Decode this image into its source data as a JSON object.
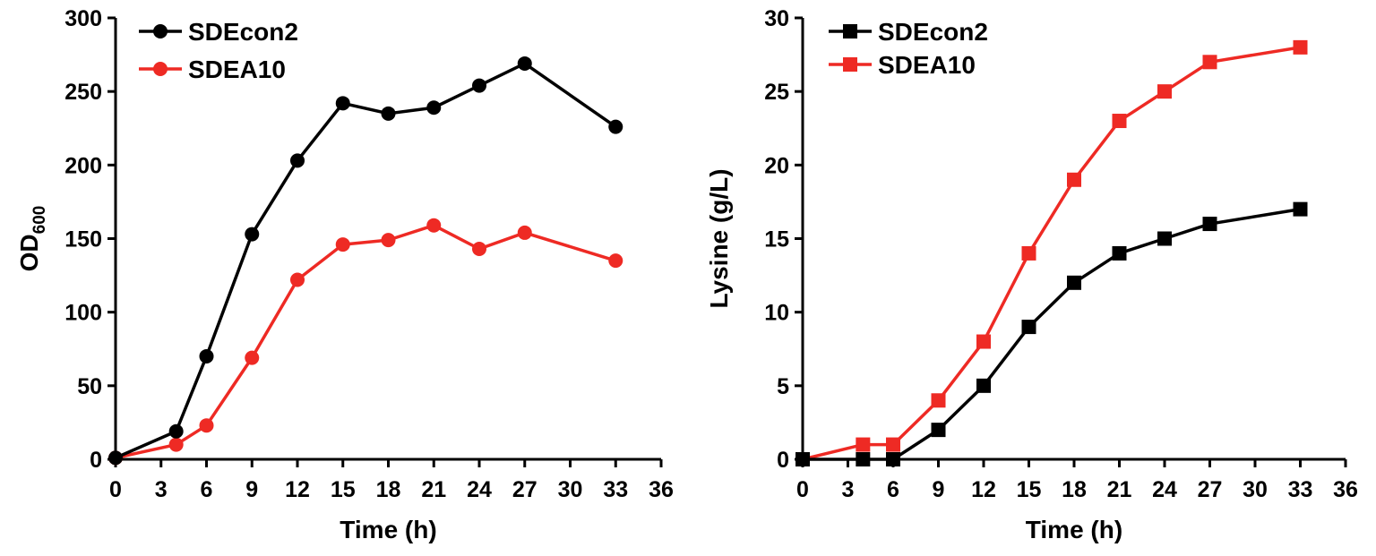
{
  "chart_data": [
    {
      "type": "line",
      "xlabel": "Time (h)",
      "ylabel_main": "OD",
      "ylabel_sub": "600",
      "xlim": [
        0,
        36
      ],
      "ylim": [
        0,
        300
      ],
      "x_ticks": [
        0,
        3,
        6,
        9,
        12,
        15,
        18,
        21,
        24,
        27,
        30,
        33,
        36
      ],
      "y_ticks": [
        0,
        50,
        100,
        150,
        200,
        250,
        300
      ],
      "marker": "circle",
      "legend_position": "top-left",
      "series": [
        {
          "name": "SDEcon2",
          "color": "#000000",
          "x": [
            0,
            4,
            6,
            9,
            12,
            15,
            18,
            21,
            24,
            27,
            33
          ],
          "values": [
            1,
            19,
            70,
            153,
            203,
            242,
            235,
            239,
            254,
            269,
            226
          ]
        },
        {
          "name": "SDEA10",
          "color": "#ee2a24",
          "x": [
            0,
            4,
            6,
            9,
            12,
            15,
            18,
            21,
            24,
            27,
            33
          ],
          "values": [
            1,
            10,
            23,
            69,
            122,
            146,
            149,
            159,
            143,
            154,
            135
          ]
        }
      ]
    },
    {
      "type": "line",
      "xlabel": "Time (h)",
      "ylabel": "Lysine  (g/L)",
      "xlim": [
        0,
        36
      ],
      "ylim": [
        0,
        30
      ],
      "x_ticks": [
        0,
        3,
        6,
        9,
        12,
        15,
        18,
        21,
        24,
        27,
        30,
        33,
        36
      ],
      "y_ticks": [
        0,
        5,
        10,
        15,
        20,
        25,
        30
      ],
      "marker": "square",
      "legend_position": "top-left",
      "series": [
        {
          "name": "SDEcon2",
          "color": "#000000",
          "x": [
            0,
            4,
            6,
            9,
            12,
            15,
            18,
            21,
            24,
            27,
            33
          ],
          "values": [
            0,
            0,
            0,
            2,
            5,
            9,
            12,
            14,
            15,
            16,
            17
          ]
        },
        {
          "name": "SDEA10",
          "color": "#ee2a24",
          "x": [
            0,
            4,
            6,
            9,
            12,
            15,
            18,
            21,
            24,
            27,
            33
          ],
          "values": [
            0,
            1,
            1,
            4,
            8,
            14,
            19,
            23,
            25,
            27,
            28
          ]
        }
      ]
    }
  ]
}
